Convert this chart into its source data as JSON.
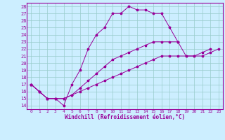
{
  "xlabel": "Windchill (Refroidissement éolien,°C)",
  "bg_color": "#cceeff",
  "line_color": "#990099",
  "grid_color": "#99cccc",
  "xlim": [
    -0.5,
    23.5
  ],
  "ylim": [
    13.5,
    28.5
  ],
  "xticks": [
    0,
    1,
    2,
    3,
    4,
    5,
    6,
    7,
    8,
    9,
    10,
    11,
    12,
    13,
    14,
    15,
    16,
    17,
    18,
    19,
    20,
    21,
    22,
    23
  ],
  "yticks": [
    14,
    15,
    16,
    17,
    18,
    19,
    20,
    21,
    22,
    23,
    24,
    25,
    26,
    27,
    28
  ],
  "curve1": {
    "x": [
      0,
      1,
      2,
      3,
      4,
      5,
      6,
      7,
      8,
      9,
      10,
      11,
      12,
      13,
      14,
      15,
      16,
      17,
      18
    ],
    "y": [
      17,
      16,
      15,
      15,
      14,
      17,
      19,
      22,
      24,
      25,
      27,
      27,
      28,
      27.5,
      27.5,
      27,
      27,
      25,
      23
    ]
  },
  "curve2": {
    "x": [
      0,
      1,
      2,
      3,
      4,
      5,
      6,
      7,
      8,
      9,
      10,
      11,
      12,
      13,
      14,
      15,
      16,
      17,
      18,
      19,
      20,
      21,
      22
    ],
    "y": [
      17,
      16,
      15,
      15,
      15,
      15.5,
      16.5,
      17.5,
      18.5,
      19.5,
      20.5,
      21,
      21.5,
      22,
      22.5,
      23,
      23,
      23,
      23,
      21,
      21,
      21.5,
      22
    ]
  },
  "curve3": {
    "x": [
      0,
      1,
      2,
      3,
      4,
      5,
      6,
      7,
      8,
      9,
      10,
      11,
      12,
      13,
      14,
      15,
      16,
      17,
      18,
      19,
      20,
      21,
      22,
      23
    ],
    "y": [
      17,
      16,
      15,
      15,
      15,
      15.5,
      16,
      16.5,
      17,
      17.5,
      18,
      18.5,
      19,
      19.5,
      20,
      20.5,
      21,
      21,
      21,
      21,
      21,
      21,
      21.5,
      22
    ]
  }
}
